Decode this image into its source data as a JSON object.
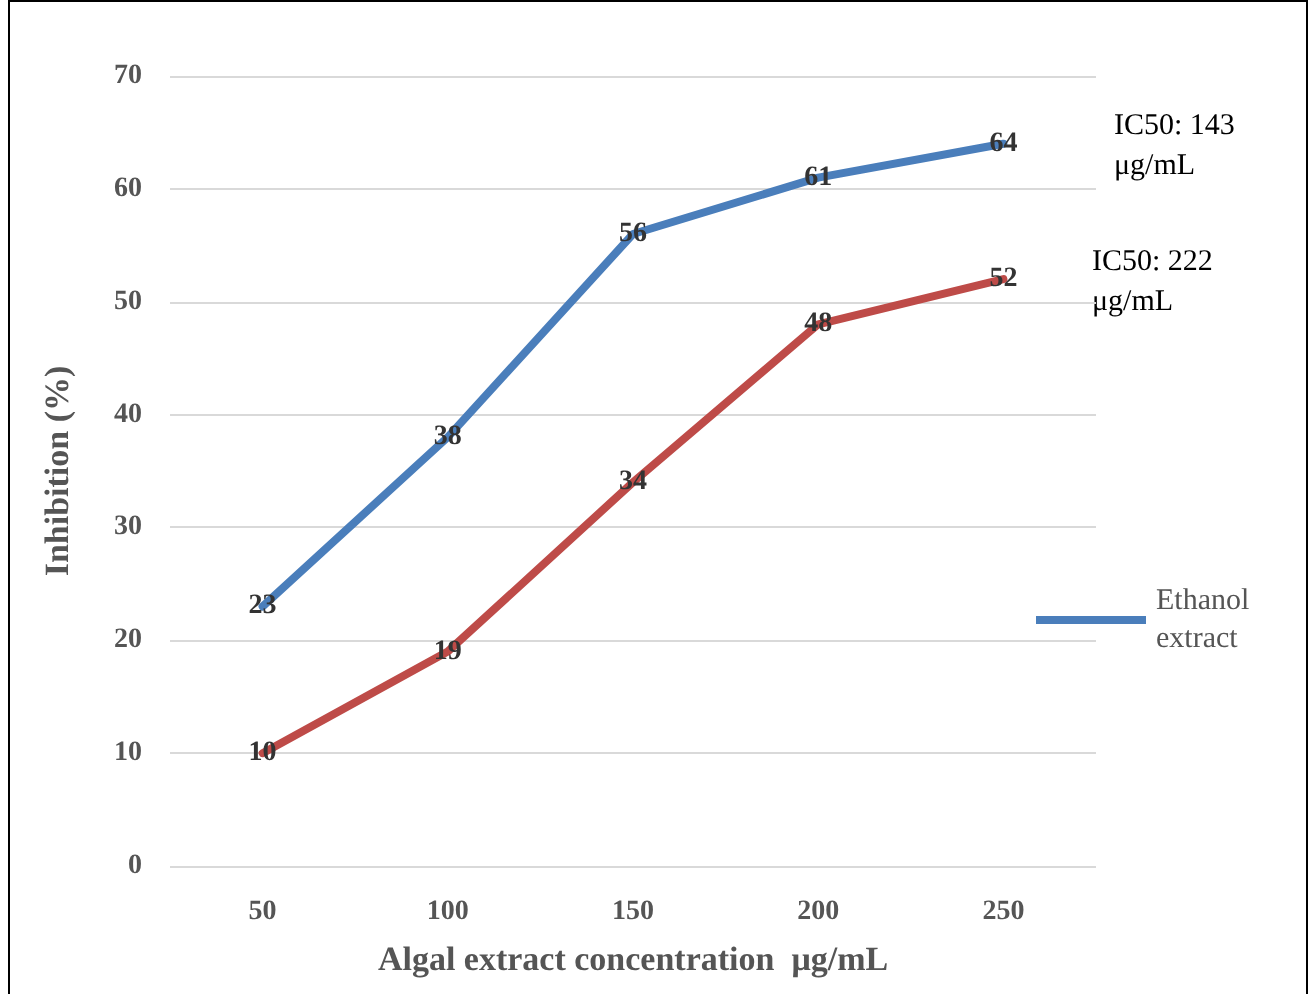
{
  "chart_data": {
    "type": "line",
    "xlabel": "Algal extract concentration  μg/mL",
    "ylabel": "Inhibition (%)",
    "categories": [
      "50",
      "100",
      "150",
      "200",
      "250"
    ],
    "series": [
      {
        "name": "Ethanol extract",
        "color": "#4a7ebb",
        "values": [
          23,
          38,
          56,
          61,
          64
        ]
      },
      {
        "color": "#be4b48",
        "values": [
          10,
          19,
          34,
          48,
          52
        ]
      }
    ],
    "ylim": [
      0,
      70
    ],
    "yticks": [
      0,
      10,
      20,
      30,
      40,
      50,
      60,
      70
    ],
    "grid": "y",
    "legend": "right",
    "marker": "none",
    "line_style": "solid",
    "data_labels": true,
    "annotations": [
      "IC50: 143 μg/mL",
      "IC50: 222 μg/mL"
    ]
  }
}
